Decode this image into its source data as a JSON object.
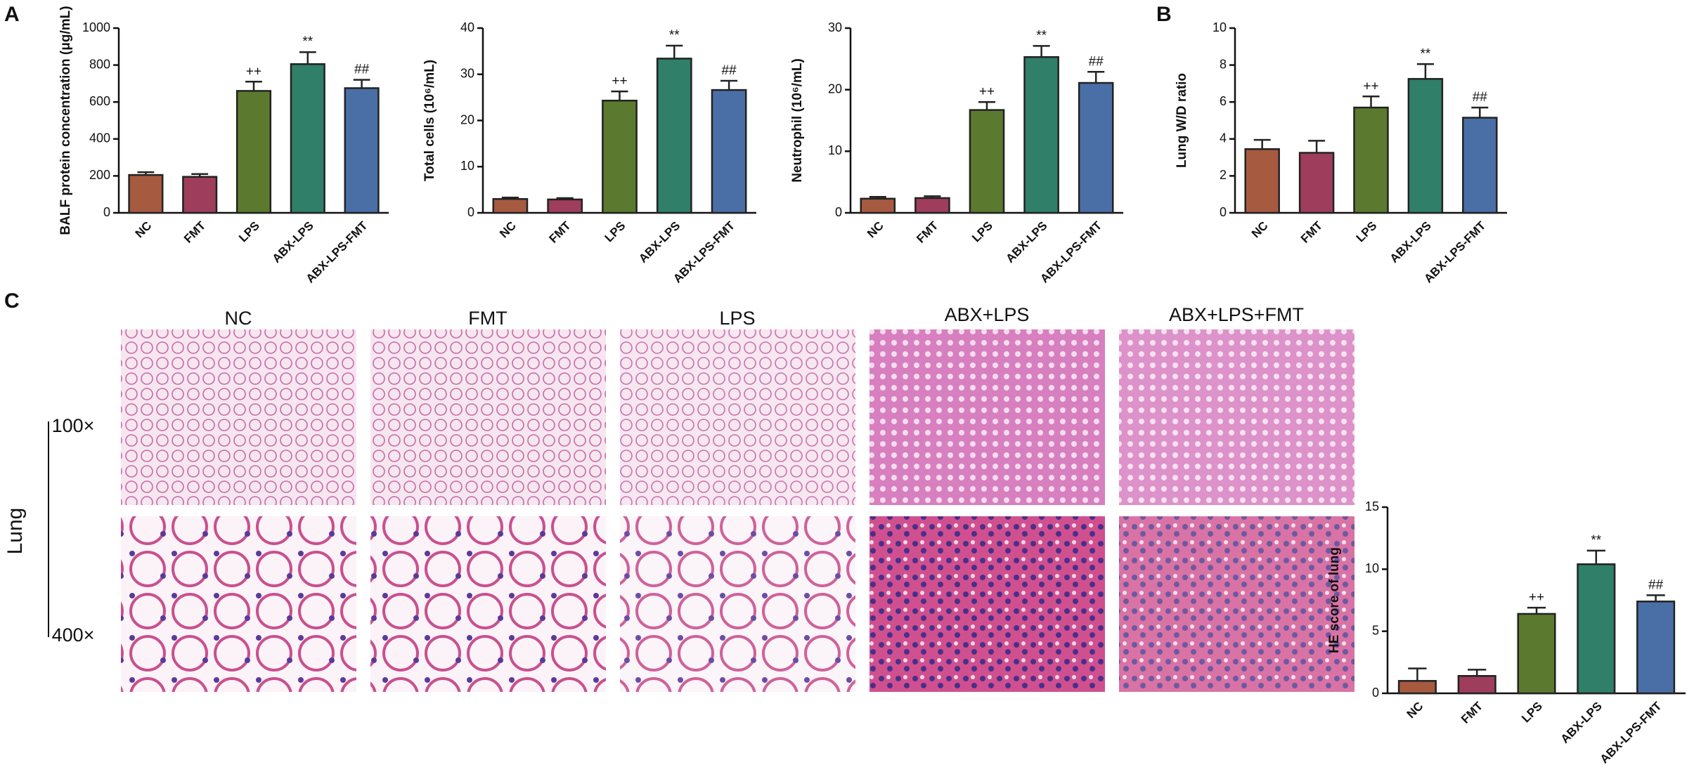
{
  "chart_data": [
    {
      "type": "bar",
      "y_label": "BALF protein concentration (μg/mL)",
      "categories": [
        "NC",
        "FMT",
        "LPS",
        "ABX-LPS",
        "ABX-LPS-FMT"
      ],
      "series": [
        {
          "colors": [
            "#a65a3f",
            "#9e3d5c",
            "#5b7a2f",
            "#2f7f69",
            "#4a6ea6"
          ],
          "values": [
            205,
            195,
            660,
            805,
            675
          ],
          "errors": [
            15,
            15,
            50,
            65,
            45
          ],
          "annotations": [
            null,
            null,
            "++",
            "**",
            "##"
          ]
        }
      ],
      "ylim": [
        0,
        1000
      ],
      "yticks": [
        0,
        200,
        400,
        600,
        800,
        1000
      ]
    },
    {
      "type": "bar",
      "y_label": "Total cells (10⁶/mL)",
      "categories": [
        "NC",
        "FMT",
        "LPS",
        "ABX-LPS",
        "ABX-LPS-FMT"
      ],
      "series": [
        {
          "colors": [
            "#a65a3f",
            "#9e3d5c",
            "#5b7a2f",
            "#2f7f69",
            "#4a6ea6"
          ],
          "values": [
            3.0,
            2.9,
            24.3,
            33.4,
            26.6
          ],
          "errors": [
            0.3,
            0.3,
            2.0,
            2.8,
            2.0
          ],
          "annotations": [
            null,
            null,
            "++",
            "**",
            "##"
          ]
        }
      ],
      "ylim": [
        0,
        40
      ],
      "yticks": [
        0,
        10,
        20,
        30,
        40
      ]
    },
    {
      "type": "bar",
      "y_label": "Neutrophil (10⁶/mL)",
      "categories": [
        "NC",
        "FMT",
        "LPS",
        "ABX-LPS",
        "ABX-LPS-FMT"
      ],
      "series": [
        {
          "colors": [
            "#a65a3f",
            "#9e3d5c",
            "#5b7a2f",
            "#2f7f69",
            "#4a6ea6"
          ],
          "values": [
            2.3,
            2.4,
            16.7,
            25.3,
            21.1
          ],
          "errors": [
            0.3,
            0.3,
            1.3,
            1.8,
            1.8
          ],
          "annotations": [
            null,
            null,
            "++",
            "**",
            "##"
          ]
        }
      ],
      "ylim": [
        0,
        30
      ],
      "yticks": [
        0,
        10,
        20,
        30
      ]
    },
    {
      "type": "bar",
      "y_label": "Lung W/D ratio",
      "categories": [
        "NC",
        "FMT",
        "LPS",
        "ABX-LPS",
        "ABX-LPS-FMT"
      ],
      "series": [
        {
          "colors": [
            "#a65a3f",
            "#9e3d5c",
            "#5b7a2f",
            "#2f7f69",
            "#4a6ea6"
          ],
          "values": [
            3.45,
            3.25,
            5.7,
            7.25,
            5.15
          ],
          "errors": [
            0.5,
            0.65,
            0.6,
            0.8,
            0.55
          ],
          "annotations": [
            null,
            null,
            "++",
            "**",
            "##"
          ]
        }
      ],
      "ylim": [
        0,
        10
      ],
      "yticks": [
        0,
        2,
        4,
        6,
        8,
        10
      ]
    },
    {
      "type": "bar",
      "y_label": "HE score of lung",
      "categories": [
        "NC",
        "FMT",
        "LPS",
        "ABX-LPS",
        "ABX-LPS-FMT"
      ],
      "series": [
        {
          "colors": [
            "#a65a3f",
            "#9e3d5c",
            "#5b7a2f",
            "#2f7f69",
            "#4a6ea6"
          ],
          "values": [
            1.0,
            1.4,
            6.4,
            10.4,
            7.4
          ],
          "errors": [
            1.0,
            0.5,
            0.5,
            1.1,
            0.5
          ],
          "annotations": [
            null,
            null,
            "++",
            "**",
            "##"
          ]
        }
      ],
      "ylim": [
        0,
        15
      ],
      "yticks": [
        0,
        5,
        10,
        15
      ]
    }
  ],
  "figure": {
    "panel_labels": [
      "A",
      "B",
      "C"
    ],
    "image_columns": [
      "NC",
      "FMT",
      "LPS",
      "ABX+LPS",
      "ABX+LPS+FMT"
    ],
    "image_rows": [
      "100×",
      "400×"
    ],
    "tissue": "Lung"
  }
}
